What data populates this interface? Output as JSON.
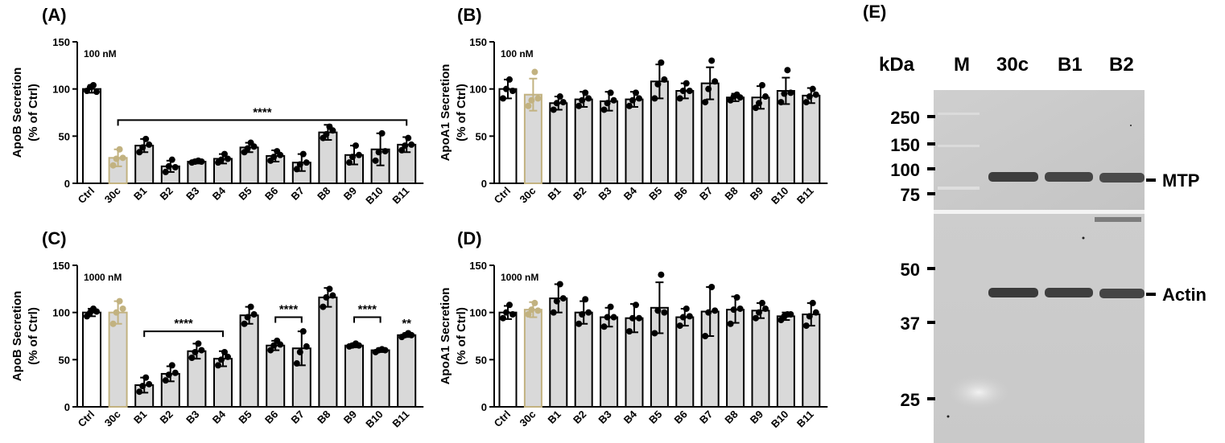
{
  "chart_data": [
    {
      "panel": "(A)",
      "type": "bar",
      "ylabel": [
        "ApoB Secretion",
        "(% of Ctrl)"
      ],
      "concentration": "100 nM",
      "ylim": [
        0,
        150
      ],
      "yticks": [
        0,
        50,
        100,
        150
      ],
      "categories": [
        "Ctrl",
        "30c",
        "B1",
        "B2",
        "B3",
        "B4",
        "B5",
        "B6",
        "B7",
        "B8",
        "B9",
        "B10",
        "B11"
      ],
      "values": [
        100,
        27,
        40,
        18,
        23,
        26,
        38,
        29,
        22,
        54,
        30,
        36,
        41
      ],
      "errors": [
        4,
        9,
        7,
        6,
        2,
        5,
        5,
        6,
        9,
        8,
        10,
        17,
        8
      ],
      "points": [
        [
          98,
          102,
          104,
          97
        ],
        [
          19,
          26,
          36,
          27
        ],
        [
          33,
          38,
          47,
          41
        ],
        [
          12,
          18,
          25,
          17
        ],
        [
          22,
          23,
          24,
          23
        ],
        [
          22,
          25,
          31,
          26
        ],
        [
          33,
          37,
          43,
          39
        ],
        [
          24,
          28,
          34,
          30
        ],
        [
          15,
          20,
          31,
          22
        ],
        [
          48,
          52,
          60,
          56
        ],
        [
          22,
          28,
          40,
          30
        ],
        [
          24,
          33,
          53,
          34
        ],
        [
          35,
          40,
          48,
          41
        ]
      ],
      "bar_colors": [
        "#ffffff",
        "#d9d9d9",
        "#d9d9d9",
        "#d9d9d9",
        "#d9d9d9",
        "#d9d9d9",
        "#d9d9d9",
        "#d9d9d9",
        "#d9d9d9",
        "#d9d9d9",
        "#d9d9d9",
        "#d9d9d9",
        "#d9d9d9"
      ],
      "edge_colors": [
        "#000000",
        "#c2b280",
        "#000000",
        "#000000",
        "#000000",
        "#000000",
        "#000000",
        "#000000",
        "#000000",
        "#000000",
        "#000000",
        "#000000",
        "#000000"
      ],
      "brackets": [
        {
          "from": 1,
          "to": 12,
          "y": 67,
          "label": "****"
        }
      ]
    },
    {
      "panel": "(B)",
      "type": "bar",
      "ylabel": [
        "ApoA1 Secretion",
        "(% of Ctrl)"
      ],
      "concentration": "100 nM",
      "ylim": [
        0,
        150
      ],
      "yticks": [
        0,
        50,
        100,
        150
      ],
      "categories": [
        "Ctrl",
        "30c",
        "B1",
        "B2",
        "B3",
        "B4",
        "B5",
        "B6",
        "B7",
        "B8",
        "B9",
        "B10",
        "B11"
      ],
      "values": [
        100,
        94,
        85,
        89,
        87,
        89,
        108,
        98,
        106,
        91,
        91,
        98,
        93
      ],
      "errors": [
        10,
        17,
        7,
        8,
        10,
        8,
        18,
        8,
        17,
        4,
        12,
        14,
        8
      ],
      "points": [
        [
          90,
          100,
          110,
          98
        ],
        [
          82,
          88,
          118,
          90
        ],
        [
          78,
          85,
          92,
          86
        ],
        [
          82,
          88,
          96,
          90
        ],
        [
          78,
          85,
          96,
          88
        ],
        [
          82,
          88,
          96,
          90
        ],
        [
          90,
          105,
          128,
          110
        ],
        [
          90,
          98,
          106,
          98
        ],
        [
          86,
          100,
          130,
          108
        ],
        [
          88,
          92,
          94,
          91
        ],
        [
          80,
          85,
          104,
          92
        ],
        [
          86,
          95,
          120,
          96
        ],
        [
          86,
          92,
          100,
          94
        ]
      ],
      "bar_colors": [
        "#ffffff",
        "#d9d9d9",
        "#d9d9d9",
        "#d9d9d9",
        "#d9d9d9",
        "#d9d9d9",
        "#d9d9d9",
        "#d9d9d9",
        "#d9d9d9",
        "#d9d9d9",
        "#d9d9d9",
        "#d9d9d9",
        "#d9d9d9"
      ],
      "edge_colors": [
        "#000000",
        "#c2b280",
        "#000000",
        "#000000",
        "#000000",
        "#000000",
        "#000000",
        "#000000",
        "#000000",
        "#000000",
        "#000000",
        "#000000",
        "#000000"
      ],
      "brackets": []
    },
    {
      "panel": "(C)",
      "type": "bar",
      "ylabel": [
        "ApoB Secretion",
        "(% of Ctrl)"
      ],
      "concentration": "1000 nM",
      "ylim": [
        0,
        150
      ],
      "yticks": [
        0,
        50,
        100,
        150
      ],
      "categories": [
        "Ctrl",
        "30c",
        "B1",
        "B2",
        "B3",
        "B4",
        "B5",
        "B6",
        "B7",
        "B8",
        "B9",
        "B10",
        "B11"
      ],
      "values": [
        100,
        100,
        23,
        35,
        59,
        51,
        97,
        65,
        62,
        116,
        65,
        60,
        76
      ],
      "errors": [
        4,
        12,
        8,
        8,
        8,
        8,
        9,
        5,
        18,
        10,
        2,
        2,
        2
      ],
      "points": [
        [
          96,
          100,
          104,
          101
        ],
        [
          88,
          100,
          112,
          104
        ],
        [
          16,
          22,
          31,
          24
        ],
        [
          28,
          34,
          44,
          36
        ],
        [
          52,
          58,
          67,
          60
        ],
        [
          44,
          50,
          58,
          53
        ],
        [
          88,
          95,
          106,
          98
        ],
        [
          60,
          65,
          70,
          66
        ],
        [
          46,
          58,
          80,
          64
        ],
        [
          106,
          116,
          125,
          118
        ],
        [
          64,
          65,
          67,
          65
        ],
        [
          58,
          60,
          61,
          60
        ],
        [
          74,
          76,
          78,
          76
        ]
      ],
      "bar_colors": [
        "#ffffff",
        "#d9d9d9",
        "#d9d9d9",
        "#d9d9d9",
        "#d9d9d9",
        "#d9d9d9",
        "#d9d9d9",
        "#d9d9d9",
        "#d9d9d9",
        "#d9d9d9",
        "#d9d9d9",
        "#d9d9d9",
        "#d9d9d9"
      ],
      "edge_colors": [
        "#000000",
        "#c2b280",
        "#000000",
        "#000000",
        "#000000",
        "#000000",
        "#000000",
        "#000000",
        "#000000",
        "#000000",
        "#000000",
        "#000000",
        "#000000"
      ],
      "brackets": [
        {
          "from": 2,
          "to": 5,
          "y": 80,
          "label": "****"
        },
        {
          "from": 7,
          "to": 8,
          "y": 95,
          "label": "****"
        },
        {
          "from": 10,
          "to": 11,
          "y": 95,
          "label": "****"
        },
        {
          "from": 12,
          "to": 12,
          "y": 80,
          "label": "**"
        }
      ]
    },
    {
      "panel": "(D)",
      "type": "bar",
      "ylabel": [
        "ApoA1 Secretion",
        "(% of Ctrl)"
      ],
      "concentration": "1000 nM",
      "ylim": [
        0,
        150
      ],
      "yticks": [
        0,
        50,
        100,
        150
      ],
      "categories": [
        "Ctrl",
        "30c",
        "B1",
        "B2",
        "B3",
        "B4",
        "B5",
        "B6",
        "B7",
        "B8",
        "B9",
        "B10",
        "B11"
      ],
      "values": [
        100,
        103,
        115,
        100,
        95,
        94,
        105,
        95,
        101,
        103,
        102,
        96,
        98
      ],
      "errors": [
        7,
        8,
        15,
        12,
        10,
        15,
        27,
        9,
        26,
        14,
        8,
        4,
        12
      ],
      "points": [
        [
          94,
          100,
          108,
          98
        ],
        [
          98,
          103,
          110,
          102
        ],
        [
          100,
          112,
          130,
          115
        ],
        [
          88,
          98,
          114,
          100
        ],
        [
          85,
          95,
          106,
          95
        ],
        [
          80,
          94,
          108,
          94
        ],
        [
          78,
          102,
          140,
          100
        ],
        [
          86,
          95,
          104,
          96
        ],
        [
          75,
          100,
          127,
          102
        ],
        [
          88,
          103,
          116,
          104
        ],
        [
          94,
          100,
          110,
          104
        ],
        [
          92,
          96,
          98,
          98
        ],
        [
          86,
          96,
          110,
          100
        ]
      ],
      "bar_colors": [
        "#ffffff",
        "#d9d9d9",
        "#d9d9d9",
        "#d9d9d9",
        "#d9d9d9",
        "#d9d9d9",
        "#d9d9d9",
        "#d9d9d9",
        "#d9d9d9",
        "#d9d9d9",
        "#d9d9d9",
        "#d9d9d9",
        "#d9d9d9"
      ],
      "edge_colors": [
        "#000000",
        "#c2b280",
        "#000000",
        "#000000",
        "#000000",
        "#000000",
        "#000000",
        "#000000",
        "#000000",
        "#000000",
        "#000000",
        "#000000",
        "#000000"
      ],
      "brackets": []
    }
  ],
  "western_blot": {
    "panel": "(E)",
    "unit_label": "kDa",
    "lanes": [
      "M",
      "30c",
      "B1",
      "B2"
    ],
    "markers": [
      "250",
      "150",
      "100",
      "75",
      "50",
      "37",
      "25"
    ],
    "bands": [
      "MTP",
      "Actin"
    ]
  },
  "colors": {
    "bar_fill": "#d9d9d9",
    "ctrl_fill": "#ffffff",
    "highlight_edge": "#c2b280",
    "blot_background": "#d4d4d4"
  }
}
